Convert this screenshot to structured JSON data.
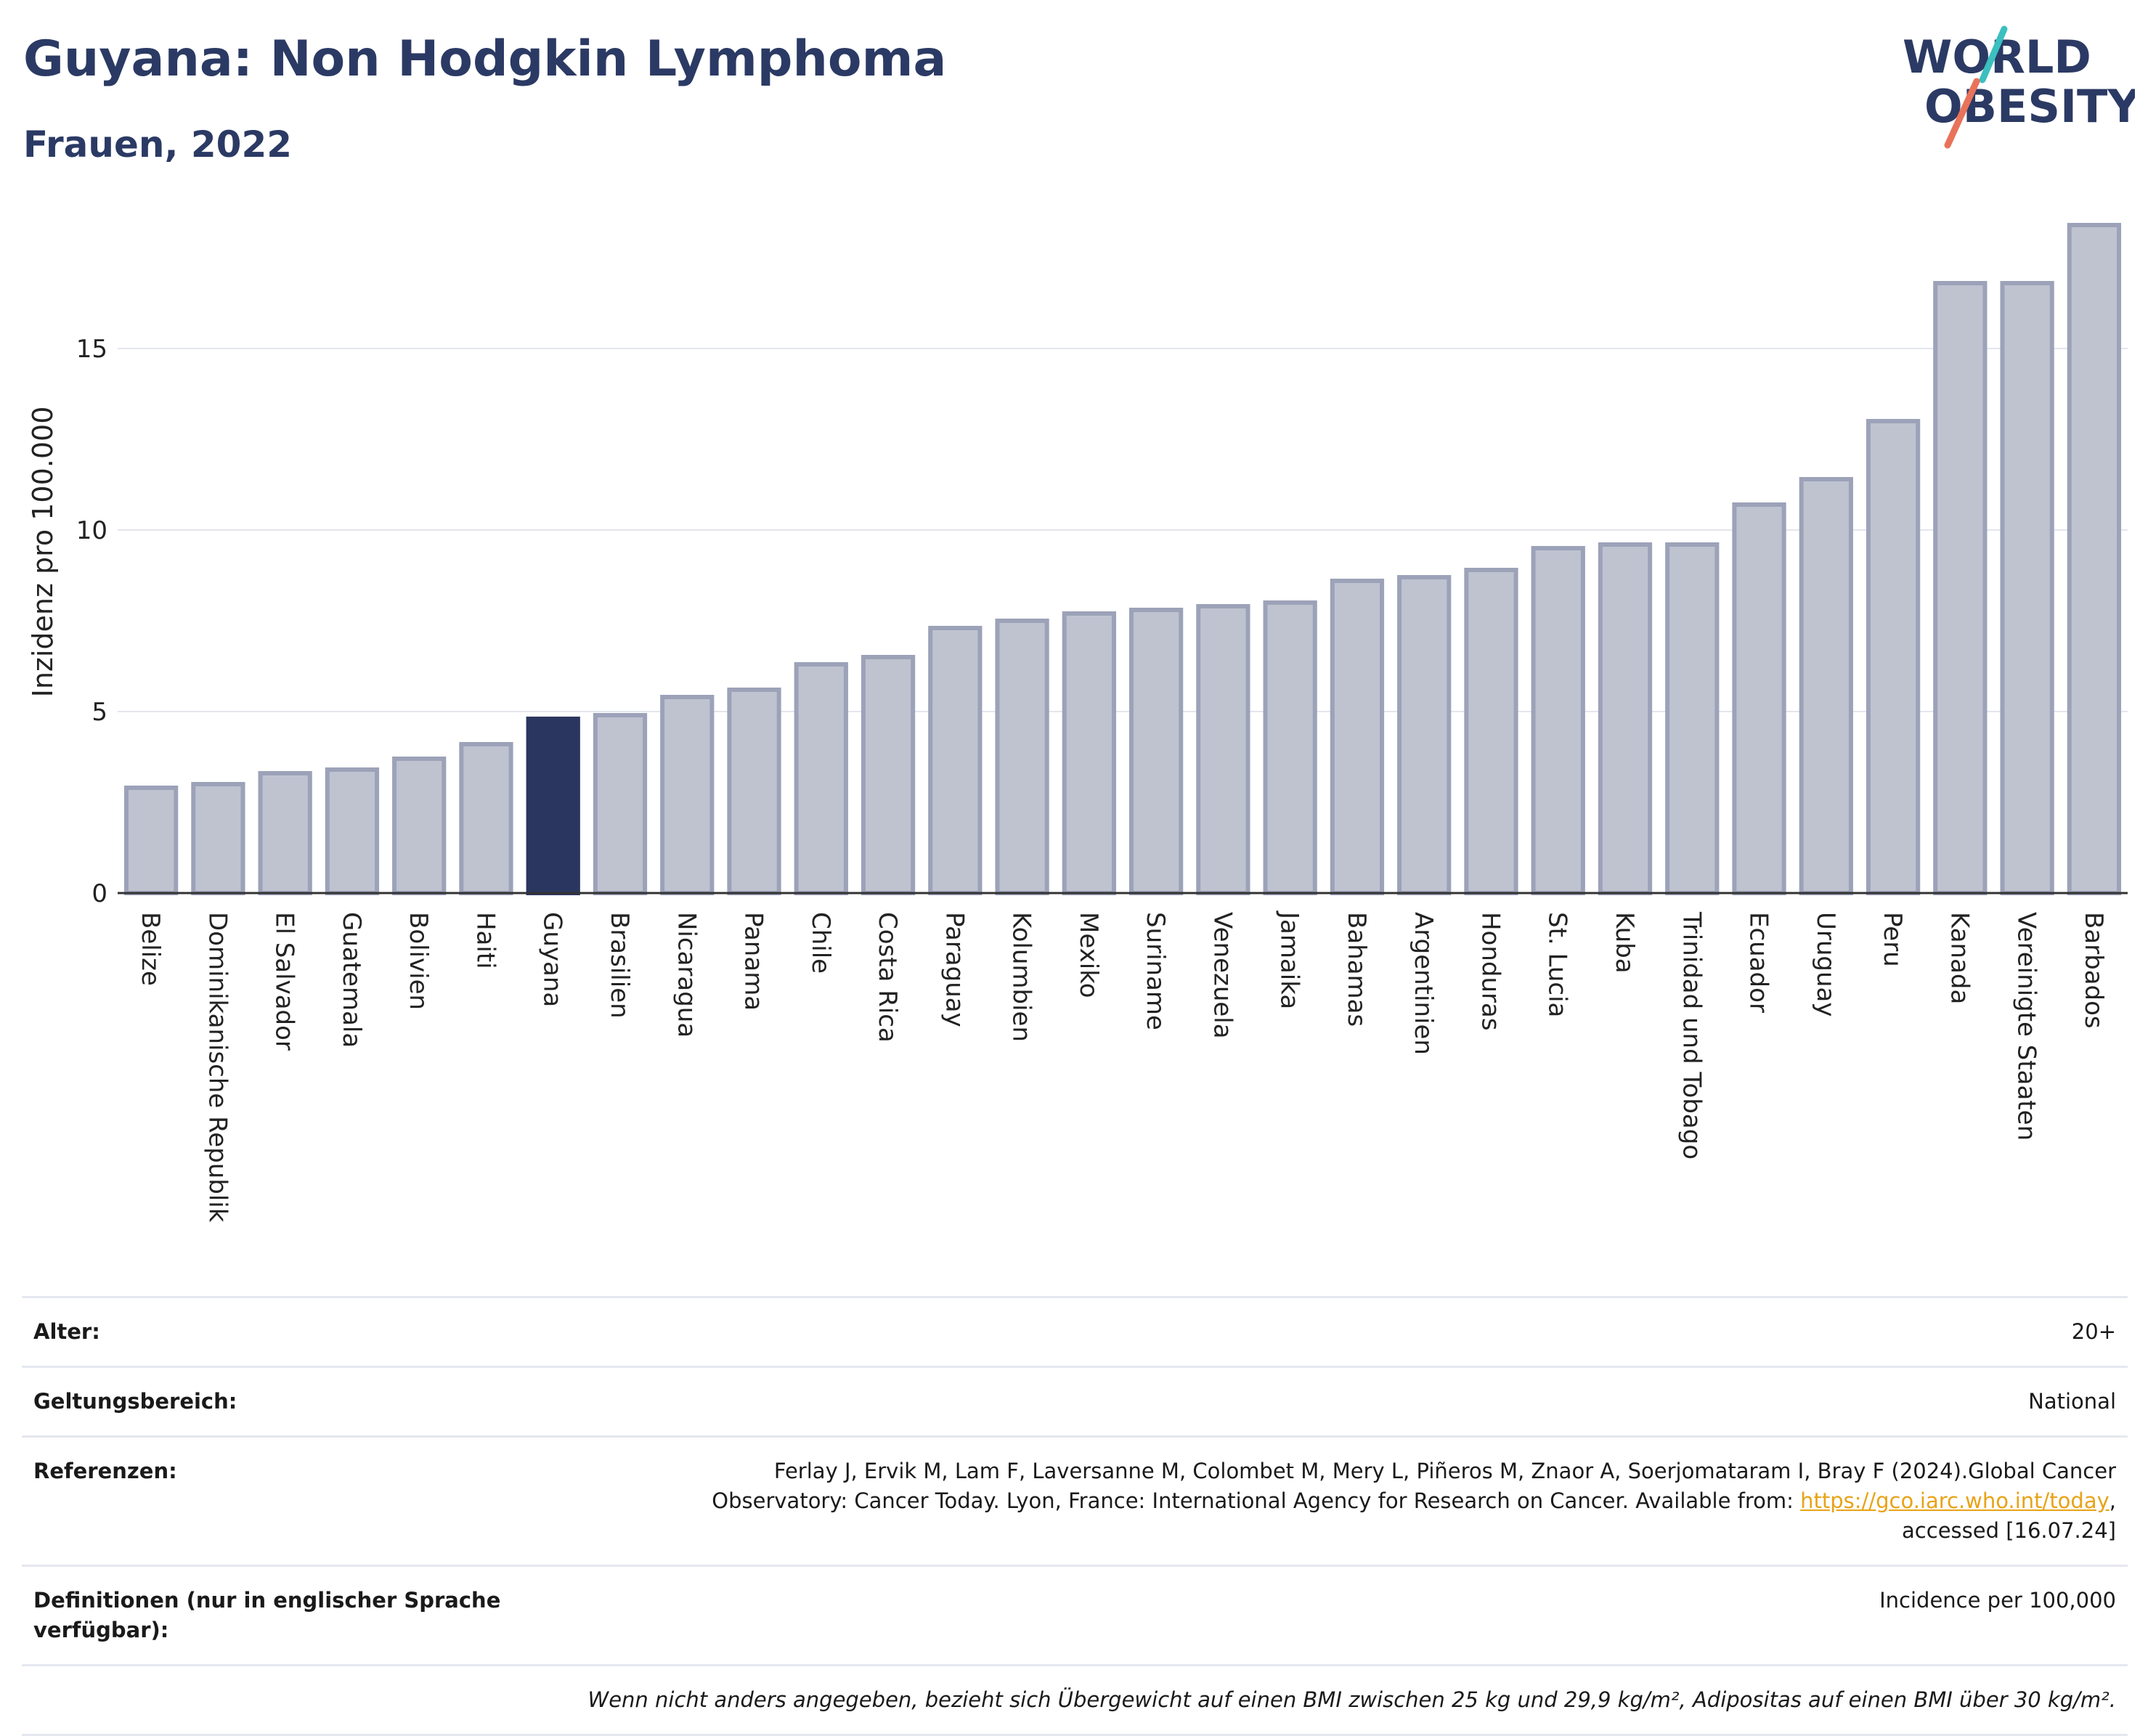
{
  "header": {
    "title": "Guyana: Non Hodgkin Lymphoma",
    "subtitle": "Frauen, 2022"
  },
  "logo": {
    "line1": "WORLD",
    "line2": "OBESITY",
    "name": "world-obesity-logo"
  },
  "colors": {
    "bar": "#bfc3d0",
    "bar_border": "#9ca2b8",
    "highlight": "#2b3660",
    "grid": "#e4e6ee",
    "axis": "#333333",
    "title": "#2b3a64",
    "logo_teal": "#3bbfbf",
    "logo_coral": "#e8735a"
  },
  "chart_data": {
    "type": "bar",
    "ylabel": "Inzidenz pro 100.000",
    "xlabel": "",
    "ylim": [
      0,
      18.8
    ],
    "yticks": [
      0,
      5,
      10,
      15
    ],
    "grid": true,
    "highlight": "Guyana",
    "categories": [
      "Belize",
      "Dominikanische Republik",
      "El Salvador",
      "Guatemala",
      "Bolivien",
      "Haiti",
      "Guyana",
      "Brasilien",
      "Nicaragua",
      "Panama",
      "Chile",
      "Costa Rica",
      "Paraguay",
      "Kolumbien",
      "Mexiko",
      "Suriname",
      "Venezuela",
      "Jamaika",
      "Bahamas",
      "Argentinien",
      "Honduras",
      "St. Lucia",
      "Kuba",
      "Trinidad und Tobago",
      "Ecuador",
      "Uruguay",
      "Peru",
      "Kanada",
      "Vereinigte Staaten",
      "Barbados"
    ],
    "values": [
      2.9,
      3.0,
      3.3,
      3.4,
      3.7,
      4.1,
      4.8,
      4.9,
      5.4,
      5.6,
      6.3,
      6.5,
      7.3,
      7.5,
      7.7,
      7.8,
      7.9,
      8.0,
      8.6,
      8.7,
      8.9,
      9.5,
      9.6,
      9.6,
      10.7,
      11.4,
      13.0,
      16.8,
      16.8,
      18.4
    ]
  },
  "meta": {
    "age_label": "Alter:",
    "age_value": "20+",
    "scope_label": "Geltungsbereich:",
    "scope_value": "National",
    "ref_label": "Referenzen:",
    "ref_text_1": "Ferlay J, Ervik M, Lam F, Laversanne M, Colombet M, Mery L, Piñeros M, Znaor A, Soerjomataram I, Bray F (2024).Global Cancer",
    "ref_text_2": "Observatory: Cancer Today. Lyon, France: International Agency for Research on Cancer. Available from: ",
    "ref_link": "https://gco.iarc.who.int/today",
    "ref_text_3": ",",
    "ref_text_4": "accessed [16.07.24]",
    "def_label": "Definitionen (nur in englischer Sprache verfügbar):",
    "def_value": "Incidence per 100,000",
    "footnote": "Wenn nicht anders angegeben, bezieht sich Übergewicht auf einen BMI zwischen 25 kg und 29,9 kg/m², Adipositas auf einen BMI über 30 kg/m²."
  }
}
